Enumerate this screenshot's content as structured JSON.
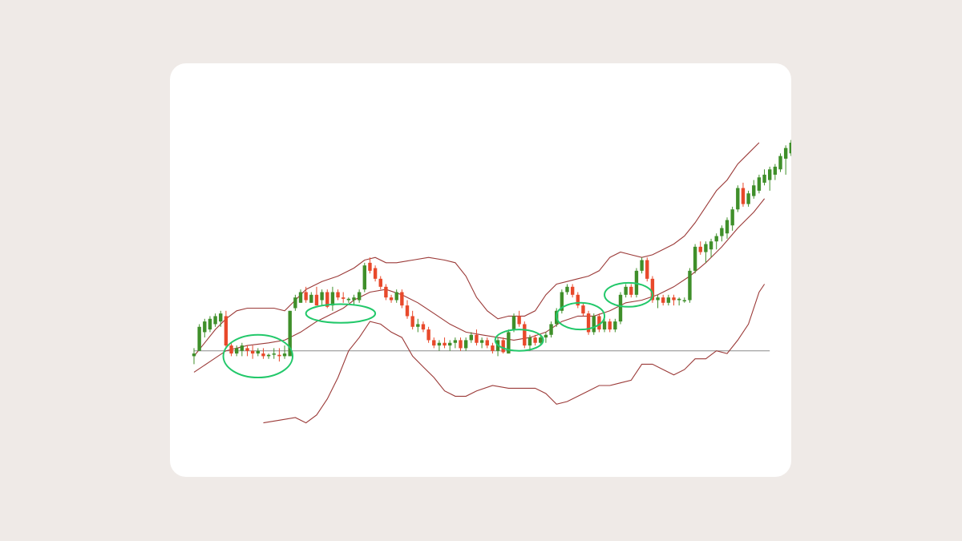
{
  "colors": {
    "background": "#efeae7",
    "card": "#ffffff",
    "up": "#3f8f2a",
    "down": "#e8492b",
    "band": "#9b3a38",
    "baseline": "#8a8a8a",
    "highlight": "#22c86a"
  },
  "chart_data": {
    "type": "candlestick",
    "title": "",
    "xlabel": "",
    "ylabel": "",
    "indicator": "bollinger-bands",
    "axes_visible": false,
    "grid": false,
    "ylim": [
      0,
      100
    ],
    "baseline": 22,
    "candles": [
      {
        "o": 20,
        "h": 23,
        "l": 17,
        "c": 21
      },
      {
        "o": 22,
        "h": 32,
        "l": 22,
        "c": 31
      },
      {
        "o": 29,
        "h": 34,
        "l": 27,
        "c": 33
      },
      {
        "o": 30,
        "h": 35,
        "l": 29,
        "c": 34
      },
      {
        "o": 32,
        "h": 36,
        "l": 31,
        "c": 35
      },
      {
        "o": 33,
        "h": 37,
        "l": 31,
        "c": 36
      },
      {
        "o": 35,
        "h": 37,
        "l": 23,
        "c": 24
      },
      {
        "o": 24,
        "h": 25,
        "l": 20,
        "c": 21
      },
      {
        "o": 21,
        "h": 24,
        "l": 20,
        "c": 23
      },
      {
        "o": 22,
        "h": 25,
        "l": 20,
        "c": 24
      },
      {
        "o": 23,
        "h": 24,
        "l": 20,
        "c": 22
      },
      {
        "o": 22,
        "h": 24,
        "l": 19,
        "c": 21
      },
      {
        "o": 21,
        "h": 23,
        "l": 20,
        "c": 22
      },
      {
        "o": 21,
        "h": 23,
        "l": 19,
        "c": 20
      },
      {
        "o": 20,
        "h": 21,
        "l": 19,
        "c": 20.5
      },
      {
        "o": 21,
        "h": 23,
        "l": 19,
        "c": 21
      },
      {
        "o": 20.5,
        "h": 23,
        "l": 18,
        "c": 20
      },
      {
        "o": 20,
        "h": 24,
        "l": 19,
        "c": 21
      },
      {
        "o": 20,
        "h": 37,
        "l": 20,
        "c": 37
      },
      {
        "o": 38,
        "h": 43,
        "l": 37,
        "c": 42
      },
      {
        "o": 40,
        "h": 45,
        "l": 40,
        "c": 44
      },
      {
        "o": 44,
        "h": 46,
        "l": 40,
        "c": 41
      },
      {
        "o": 40,
        "h": 44,
        "l": 40,
        "c": 43
      },
      {
        "o": 43,
        "h": 46,
        "l": 39,
        "c": 39
      },
      {
        "o": 41,
        "h": 45,
        "l": 39,
        "c": 44
      },
      {
        "o": 44,
        "h": 45,
        "l": 38,
        "c": 38.5
      },
      {
        "o": 39,
        "h": 46,
        "l": 37,
        "c": 44
      },
      {
        "o": 44,
        "h": 45,
        "l": 41,
        "c": 42
      },
      {
        "o": 42,
        "h": 44,
        "l": 40,
        "c": 41.5
      },
      {
        "o": 41,
        "h": 42,
        "l": 40,
        "c": 41.5
      },
      {
        "o": 41,
        "h": 43,
        "l": 39,
        "c": 42
      },
      {
        "o": 41,
        "h": 45,
        "l": 40,
        "c": 44
      },
      {
        "o": 45,
        "h": 55,
        "l": 44,
        "c": 54
      },
      {
        "o": 55,
        "h": 57,
        "l": 51,
        "c": 52
      },
      {
        "o": 53,
        "h": 54,
        "l": 48,
        "c": 49
      },
      {
        "o": 49,
        "h": 50,
        "l": 45,
        "c": 46
      },
      {
        "o": 46,
        "h": 47,
        "l": 41,
        "c": 42
      },
      {
        "o": 42,
        "h": 43,
        "l": 40,
        "c": 41
      },
      {
        "o": 41,
        "h": 45,
        "l": 40,
        "c": 44
      },
      {
        "o": 44,
        "h": 45,
        "l": 38,
        "c": 39
      },
      {
        "o": 39,
        "h": 41,
        "l": 34,
        "c": 35
      },
      {
        "o": 35,
        "h": 37,
        "l": 30,
        "c": 31
      },
      {
        "o": 31,
        "h": 34,
        "l": 29,
        "c": 32
      },
      {
        "o": 32,
        "h": 33,
        "l": 29,
        "c": 30
      },
      {
        "o": 30,
        "h": 31,
        "l": 25,
        "c": 26
      },
      {
        "o": 26,
        "h": 27,
        "l": 23,
        "c": 24
      },
      {
        "o": 24,
        "h": 26,
        "l": 22,
        "c": 25
      },
      {
        "o": 25,
        "h": 27,
        "l": 23,
        "c": 24
      },
      {
        "o": 24,
        "h": 26,
        "l": 22,
        "c": 25
      },
      {
        "o": 25,
        "h": 27,
        "l": 23,
        "c": 26
      },
      {
        "o": 26,
        "h": 27,
        "l": 22,
        "c": 23
      },
      {
        "o": 23,
        "h": 27,
        "l": 22,
        "c": 26
      },
      {
        "o": 26,
        "h": 29,
        "l": 25,
        "c": 28
      },
      {
        "o": 28,
        "h": 30,
        "l": 24,
        "c": 25
      },
      {
        "o": 25,
        "h": 27,
        "l": 23,
        "c": 26
      },
      {
        "o": 26,
        "h": 27,
        "l": 23,
        "c": 24
      },
      {
        "o": 24,
        "h": 25,
        "l": 21,
        "c": 22
      },
      {
        "o": 22,
        "h": 27,
        "l": 20,
        "c": 26
      },
      {
        "o": 26,
        "h": 27,
        "l": 21,
        "c": 21.5
      },
      {
        "o": 21,
        "h": 30,
        "l": 21,
        "c": 29
      },
      {
        "o": 30,
        "h": 36,
        "l": 29,
        "c": 35
      },
      {
        "o": 35,
        "h": 37,
        "l": 31,
        "c": 32
      },
      {
        "o": 32,
        "h": 33,
        "l": 23,
        "c": 24
      },
      {
        "o": 24,
        "h": 28,
        "l": 22,
        "c": 27
      },
      {
        "o": 27,
        "h": 28,
        "l": 24,
        "c": 25
      },
      {
        "o": 25,
        "h": 28,
        "l": 24,
        "c": 27
      },
      {
        "o": 27,
        "h": 29,
        "l": 25,
        "c": 28
      },
      {
        "o": 28,
        "h": 33,
        "l": 27,
        "c": 32
      },
      {
        "o": 32,
        "h": 38,
        "l": 31,
        "c": 37
      },
      {
        "o": 37,
        "h": 45,
        "l": 36,
        "c": 44
      },
      {
        "o": 44,
        "h": 47,
        "l": 43,
        "c": 46
      },
      {
        "o": 46,
        "h": 47,
        "l": 42,
        "c": 43
      },
      {
        "o": 43,
        "h": 44,
        "l": 38,
        "c": 39
      },
      {
        "o": 39,
        "h": 40,
        "l": 35,
        "c": 36
      },
      {
        "o": 36,
        "h": 37,
        "l": 28,
        "c": 29
      },
      {
        "o": 29,
        "h": 36,
        "l": 28,
        "c": 35
      },
      {
        "o": 35,
        "h": 36,
        "l": 29,
        "c": 30
      },
      {
        "o": 30,
        "h": 34,
        "l": 29,
        "c": 33
      },
      {
        "o": 33,
        "h": 34,
        "l": 29,
        "c": 30
      },
      {
        "o": 30,
        "h": 34,
        "l": 29,
        "c": 33
      },
      {
        "o": 33,
        "h": 44,
        "l": 32,
        "c": 43
      },
      {
        "o": 43,
        "h": 47,
        "l": 42,
        "c": 46
      },
      {
        "o": 46,
        "h": 47,
        "l": 42,
        "c": 43
      },
      {
        "o": 43,
        "h": 53,
        "l": 42,
        "c": 52
      },
      {
        "o": 52,
        "h": 57,
        "l": 51,
        "c": 56
      },
      {
        "o": 56,
        "h": 57,
        "l": 48,
        "c": 49
      },
      {
        "o": 49,
        "h": 50,
        "l": 40,
        "c": 41
      },
      {
        "o": 41,
        "h": 43,
        "l": 38,
        "c": 42
      },
      {
        "o": 42,
        "h": 43,
        "l": 39,
        "c": 40
      },
      {
        "o": 40,
        "h": 43,
        "l": 39,
        "c": 42
      },
      {
        "o": 42,
        "h": 43,
        "l": 39,
        "c": 41
      },
      {
        "o": 41,
        "h": 42,
        "l": 39,
        "c": 41.5
      },
      {
        "o": 41,
        "h": 42,
        "l": 40,
        "c": 41
      },
      {
        "o": 41,
        "h": 53,
        "l": 40,
        "c": 52
      },
      {
        "o": 52,
        "h": 62,
        "l": 51,
        "c": 61
      },
      {
        "o": 61,
        "h": 63,
        "l": 58,
        "c": 59
      },
      {
        "o": 59,
        "h": 63,
        "l": 55,
        "c": 62
      },
      {
        "o": 60,
        "h": 64,
        "l": 57,
        "c": 63
      },
      {
        "o": 63,
        "h": 66,
        "l": 60,
        "c": 65
      },
      {
        "o": 65,
        "h": 69,
        "l": 63,
        "c": 68
      },
      {
        "o": 66,
        "h": 72,
        "l": 64,
        "c": 71
      },
      {
        "o": 69,
        "h": 76,
        "l": 67,
        "c": 75
      },
      {
        "o": 75,
        "h": 84,
        "l": 74,
        "c": 83
      },
      {
        "o": 83,
        "h": 85,
        "l": 76,
        "c": 77
      },
      {
        "o": 77,
        "h": 82,
        "l": 76,
        "c": 81
      },
      {
        "o": 80,
        "h": 86,
        "l": 79,
        "c": 84
      },
      {
        "o": 82,
        "h": 88,
        "l": 81,
        "c": 87
      },
      {
        "o": 85,
        "h": 90,
        "l": 84,
        "c": 88
      },
      {
        "o": 86,
        "h": 91,
        "l": 82,
        "c": 90
      },
      {
        "o": 88,
        "h": 92,
        "l": 86,
        "c": 91
      },
      {
        "o": 90,
        "h": 96,
        "l": 89,
        "c": 95
      },
      {
        "o": 94,
        "h": 99,
        "l": 88,
        "c": 98
      },
      {
        "o": 96,
        "h": 101,
        "l": 95,
        "c": 100
      },
      {
        "o": 100,
        "h": 100,
        "l": 92,
        "c": 94
      }
    ],
    "upper_band": [
      [
        0,
        20
      ],
      [
        2,
        25
      ],
      [
        4,
        30
      ],
      [
        6,
        34
      ],
      [
        8,
        37
      ],
      [
        10,
        38
      ],
      [
        12,
        38
      ],
      [
        15,
        38
      ],
      [
        17,
        37
      ],
      [
        19,
        41
      ],
      [
        21,
        45
      ],
      [
        24,
        48
      ],
      [
        27,
        50
      ],
      [
        30,
        53
      ],
      [
        32,
        56
      ],
      [
        34,
        57
      ],
      [
        36,
        55
      ],
      [
        38,
        55
      ],
      [
        41,
        56
      ],
      [
        44,
        57
      ],
      [
        47,
        56
      ],
      [
        49,
        55
      ],
      [
        51,
        50
      ],
      [
        53,
        42
      ],
      [
        55,
        37
      ],
      [
        57,
        34
      ],
      [
        59,
        35
      ],
      [
        62,
        35
      ],
      [
        64,
        37
      ],
      [
        66,
        43
      ],
      [
        68,
        47
      ],
      [
        70,
        48
      ],
      [
        72,
        49
      ],
      [
        74,
        50
      ],
      [
        76,
        52
      ],
      [
        78,
        57
      ],
      [
        80,
        59
      ],
      [
        82,
        58
      ],
      [
        84,
        57
      ],
      [
        86,
        58
      ],
      [
        88,
        60
      ],
      [
        90,
        62
      ],
      [
        92,
        65
      ],
      [
        94,
        70
      ],
      [
        96,
        76
      ],
      [
        98,
        82
      ],
      [
        100,
        86
      ],
      [
        102,
        92
      ],
      [
        104,
        96
      ],
      [
        106,
        100
      ]
    ],
    "middle_band": [
      [
        0,
        14
      ],
      [
        3,
        18
      ],
      [
        6,
        22
      ],
      [
        10,
        24
      ],
      [
        14,
        25
      ],
      [
        17,
        26
      ],
      [
        20,
        29
      ],
      [
        23,
        33
      ],
      [
        26,
        36
      ],
      [
        28,
        38
      ],
      [
        30,
        41
      ],
      [
        33,
        44
      ],
      [
        36,
        45
      ],
      [
        39,
        43
      ],
      [
        42,
        40
      ],
      [
        45,
        36
      ],
      [
        48,
        32
      ],
      [
        51,
        29
      ],
      [
        54,
        28
      ],
      [
        57,
        27
      ],
      [
        60,
        26
      ],
      [
        63,
        27
      ],
      [
        66,
        29
      ],
      [
        69,
        33
      ],
      [
        72,
        35
      ],
      [
        75,
        35
      ],
      [
        78,
        37
      ],
      [
        81,
        40
      ],
      [
        84,
        41
      ],
      [
        87,
        43
      ],
      [
        90,
        46
      ],
      [
        93,
        50
      ],
      [
        96,
        55
      ],
      [
        99,
        61
      ],
      [
        102,
        68
      ],
      [
        105,
        74
      ],
      [
        107,
        79
      ]
    ],
    "lower_band": [
      [
        13,
        -5
      ],
      [
        16,
        -4
      ],
      [
        19,
        -3
      ],
      [
        21,
        -5
      ],
      [
        23,
        -2
      ],
      [
        25,
        4
      ],
      [
        27,
        12
      ],
      [
        29,
        22
      ],
      [
        31,
        27
      ],
      [
        33,
        33
      ],
      [
        35,
        32
      ],
      [
        37,
        29
      ],
      [
        39,
        27
      ],
      [
        41,
        20
      ],
      [
        43,
        16
      ],
      [
        45,
        12
      ],
      [
        47,
        7
      ],
      [
        49,
        5
      ],
      [
        51,
        5
      ],
      [
        53,
        7
      ],
      [
        56,
        9
      ],
      [
        59,
        8
      ],
      [
        62,
        8
      ],
      [
        64,
        8
      ],
      [
        66,
        6
      ],
      [
        68,
        2
      ],
      [
        70,
        3
      ],
      [
        72,
        5
      ],
      [
        74,
        7
      ],
      [
        76,
        9
      ],
      [
        78,
        9
      ],
      [
        80,
        10
      ],
      [
        82,
        11
      ],
      [
        84,
        17
      ],
      [
        86,
        17
      ],
      [
        88,
        15
      ],
      [
        90,
        13
      ],
      [
        92,
        15
      ],
      [
        94,
        19
      ],
      [
        96,
        19
      ],
      [
        98,
        22
      ],
      [
        100,
        21
      ],
      [
        102,
        26
      ],
      [
        104,
        32
      ],
      [
        106,
        44
      ],
      [
        107,
        47
      ]
    ],
    "highlights": [
      {
        "cx": 12,
        "cy": 20,
        "rx": 6.5,
        "ry": 8
      },
      {
        "cx": 27.5,
        "cy": 36,
        "rx": 6.5,
        "ry": 3.5
      },
      {
        "cx": 61,
        "cy": 26,
        "rx": 4.5,
        "ry": 4
      },
      {
        "cx": 72.5,
        "cy": 35,
        "rx": 4.5,
        "ry": 5
      },
      {
        "cx": 81.5,
        "cy": 43,
        "rx": 4.5,
        "ry": 4.5
      }
    ]
  }
}
